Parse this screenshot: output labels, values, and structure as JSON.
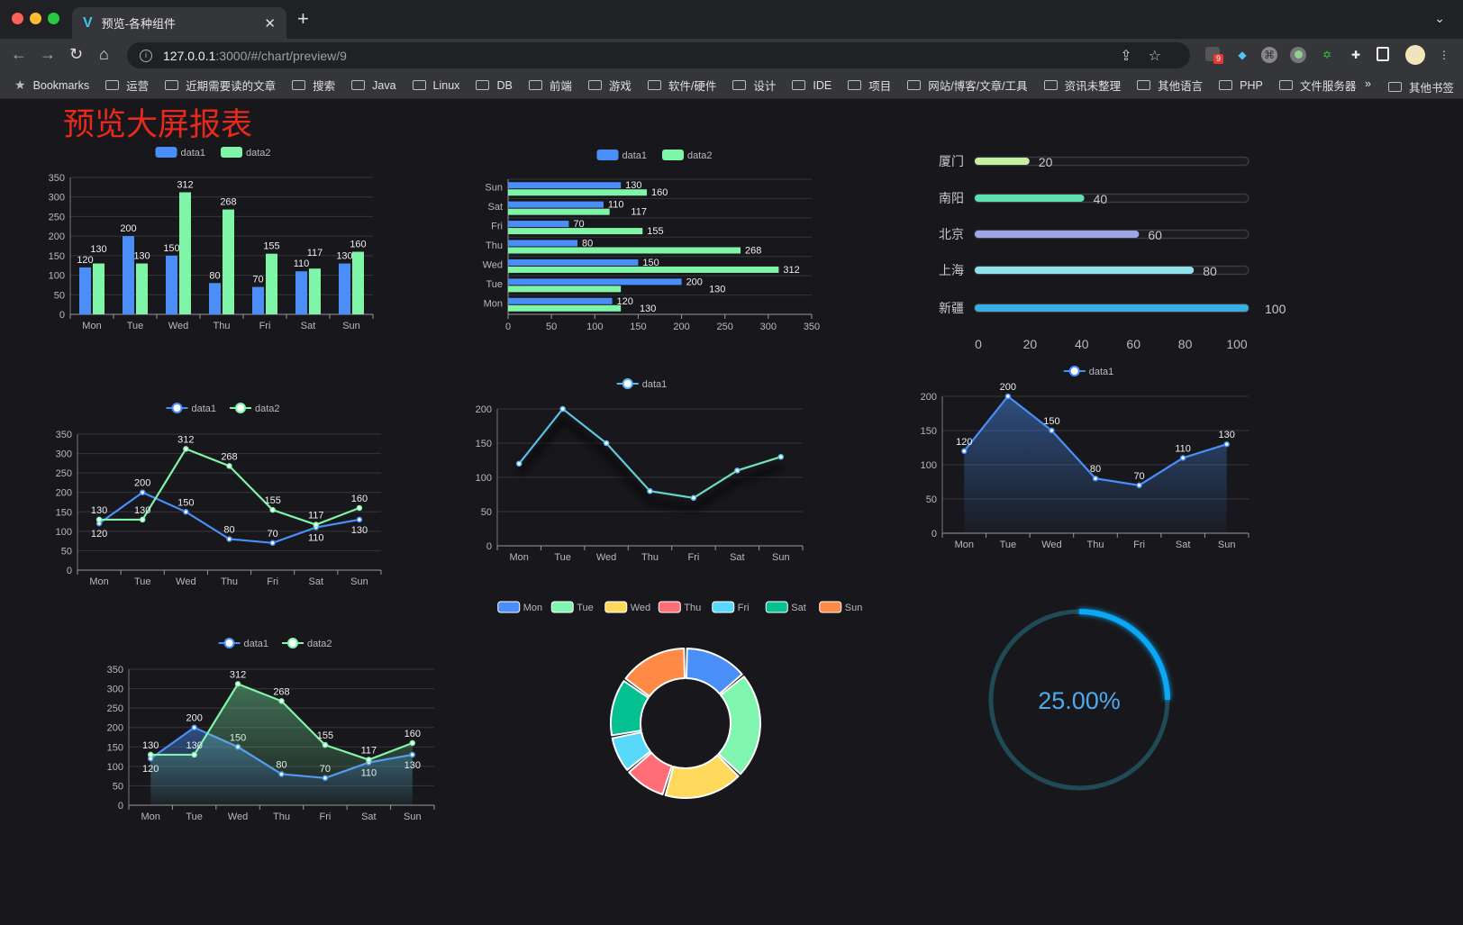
{
  "browser": {
    "tab_title": "预览-各种组件",
    "url_host": "127.0.0.1",
    "url_rest": ":3000/#/chart/preview/9",
    "extension_badge": "9",
    "bookmarks": [
      "Bookmarks",
      "运营",
      "近期需要读的文章",
      "搜索",
      "Java",
      "Linux",
      "DB",
      "前端",
      "游戏",
      "软件/硬件",
      "设计",
      "IDE",
      "项目",
      "网站/博客/文章/工具",
      "资讯未整理",
      "其他语言",
      "PHP",
      "文件服务器"
    ],
    "bookmarks_more": "»",
    "other_bookmarks": "其他书签"
  },
  "page": {
    "title": "预览大屏报表",
    "title_color": "#e8291c",
    "background": "#18181c"
  },
  "chart_data": [
    {
      "type": "bar",
      "legend": [
        "data1",
        "data2"
      ],
      "categories": [
        "Mon",
        "Tue",
        "Wed",
        "Thu",
        "Fri",
        "Sat",
        "Sun"
      ],
      "series": [
        {
          "name": "data1",
          "values": [
            120,
            200,
            150,
            80,
            70,
            110,
            130
          ],
          "color": "#4a8ff8"
        },
        {
          "name": "data2",
          "values": [
            130,
            130,
            312,
            268,
            155,
            117,
            160
          ],
          "color": "#7ff5a8"
        }
      ],
      "ylim": [
        0,
        350
      ],
      "ystep": 50,
      "grid": true,
      "legend_position": "top"
    },
    {
      "type": "bar",
      "orientation": "horizontal",
      "legend": [
        "data1",
        "data2"
      ],
      "categories": [
        "Mon",
        "Tue",
        "Wed",
        "Thu",
        "Fri",
        "Sat",
        "Sun"
      ],
      "series": [
        {
          "name": "data1",
          "values": [
            120,
            200,
            150,
            80,
            70,
            110,
            130
          ],
          "color": "#4a8ff8"
        },
        {
          "name": "data2",
          "values": [
            130,
            130,
            312,
            268,
            155,
            117,
            160
          ],
          "color": "#7ff5a8"
        }
      ],
      "xlim": [
        0,
        350
      ],
      "xstep": 50,
      "grid": true,
      "legend_position": "top"
    },
    {
      "type": "bar",
      "orientation": "horizontal",
      "style": "progress",
      "categories": [
        "厦门",
        "南阳",
        "北京",
        "上海",
        "新疆"
      ],
      "values": [
        20,
        40,
        60,
        80,
        100
      ],
      "colors": [
        "#c4f0a0",
        "#5ee0b0",
        "#9ea6e8",
        "#8fe2ea",
        "#39aee2"
      ],
      "xlim": [
        0,
        100
      ],
      "xstep": 20
    },
    {
      "type": "line",
      "legend": [
        "data1",
        "data2"
      ],
      "categories": [
        "Mon",
        "Tue",
        "Wed",
        "Thu",
        "Fri",
        "Sat",
        "Sun"
      ],
      "series": [
        {
          "name": "data1",
          "values": [
            120,
            200,
            150,
            80,
            70,
            110,
            130
          ],
          "color": "#4a8ff8"
        },
        {
          "name": "data2",
          "values": [
            130,
            130,
            312,
            268,
            155,
            117,
            160
          ],
          "color": "#7ff5a8"
        }
      ],
      "ylim": [
        0,
        350
      ],
      "ystep": 50,
      "grid": true,
      "legend_position": "top"
    },
    {
      "type": "line",
      "legend": [
        "data1"
      ],
      "categories": [
        "Mon",
        "Tue",
        "Wed",
        "Thu",
        "Fri",
        "Sat",
        "Sun"
      ],
      "series": [
        {
          "name": "data1",
          "values": [
            120,
            200,
            150,
            80,
            70,
            110,
            130
          ],
          "color": "#5ab8f0",
          "color_end": "#6fe8b0"
        }
      ],
      "ylim": [
        0,
        200
      ],
      "ystep": 50,
      "grid": true,
      "legend_position": "top",
      "shadow": true
    },
    {
      "type": "area",
      "legend": [
        "data1"
      ],
      "categories": [
        "Mon",
        "Tue",
        "Wed",
        "Thu",
        "Fri",
        "Sat",
        "Sun"
      ],
      "series": [
        {
          "name": "data1",
          "values": [
            120,
            200,
            150,
            80,
            70,
            110,
            130
          ],
          "color": "#4a8ff8"
        }
      ],
      "ylim": [
        0,
        200
      ],
      "ystep": 50,
      "grid": true,
      "legend_position": "top"
    },
    {
      "type": "area",
      "legend": [
        "data1",
        "data2"
      ],
      "categories": [
        "Mon",
        "Tue",
        "Wed",
        "Thu",
        "Fri",
        "Sat",
        "Sun"
      ],
      "series": [
        {
          "name": "data1",
          "values": [
            120,
            200,
            150,
            80,
            70,
            110,
            130
          ],
          "color": "#4a8ff8"
        },
        {
          "name": "data2",
          "values": [
            130,
            130,
            312,
            268,
            155,
            117,
            160
          ],
          "color": "#7ff5a8"
        }
      ],
      "ylim": [
        0,
        350
      ],
      "ystep": 50,
      "grid": true,
      "legend_position": "top"
    },
    {
      "type": "pie",
      "style": "donut",
      "legend": [
        "Mon",
        "Tue",
        "Wed",
        "Thu",
        "Fri",
        "Sat",
        "Sun"
      ],
      "values": [
        120,
        200,
        150,
        80,
        70,
        110,
        130
      ],
      "colors": [
        "#4a8ff8",
        "#7ff5b0",
        "#ffd95c",
        "#ff6e76",
        "#58d9f9",
        "#05c091",
        "#ff8a45"
      ],
      "legend_position": "top"
    },
    {
      "type": "gauge",
      "style": "ring",
      "value": 25,
      "label": "25.00%",
      "color": "#0ea8f5",
      "track_color": "#1f4a56",
      "text_color": "#4eaaec"
    }
  ]
}
